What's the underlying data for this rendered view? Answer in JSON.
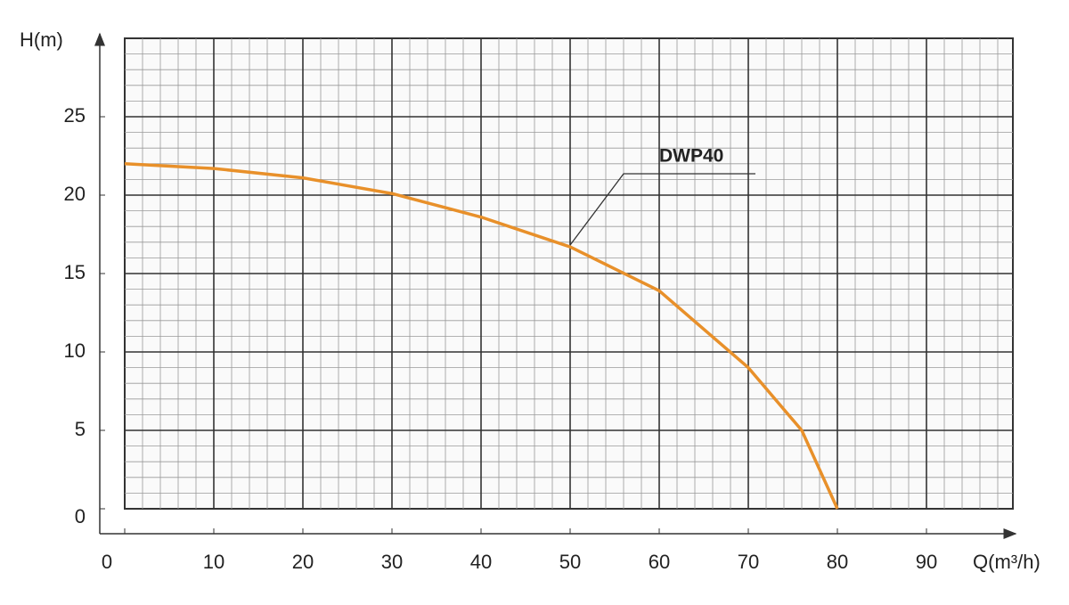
{
  "chart_data": {
    "type": "line",
    "x_label": "Q(m³/h)",
    "y_label": "H(m)",
    "x": [
      0,
      10,
      20,
      30,
      40,
      50,
      60,
      70,
      76,
      80
    ],
    "series": [
      {
        "name": "DWP40",
        "color": "#e8902a",
        "values": [
          22,
          21.7,
          21.1,
          20.1,
          18.6,
          16.7,
          13.9,
          9.0,
          5.0,
          0
        ]
      }
    ],
    "xlim": [
      0,
      100
    ],
    "ylim": [
      0,
      30
    ],
    "xticks": [
      0,
      10,
      20,
      30,
      40,
      50,
      60,
      70,
      80,
      90
    ],
    "yticks": [
      0,
      5,
      10,
      15,
      20,
      25
    ],
    "grid": true
  }
}
